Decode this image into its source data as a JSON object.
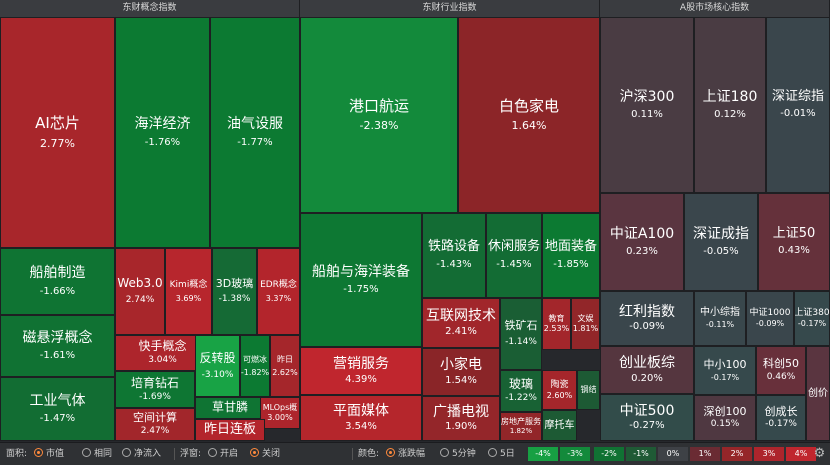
{
  "sections": [
    {
      "title": "东财概念指数"
    },
    {
      "title": "东财行业指数"
    },
    {
      "title": "A股市场核心指数"
    }
  ],
  "tiles": [
    {
      "name": "AI芯片",
      "value": "2.77%",
      "color": "#a8262b"
    },
    {
      "name": "海洋经济",
      "value": "-1.76%",
      "color": "#0c7a32"
    },
    {
      "name": "油气设服",
      "value": "-1.77%",
      "color": "#0c7a32"
    },
    {
      "name": "船舶制造",
      "value": "-1.66%",
      "color": "#0f7433"
    },
    {
      "name": "磁悬浮概念",
      "value": "-1.61%",
      "color": "#107233"
    },
    {
      "name": "工业气体",
      "value": "-1.47%",
      "color": "#126d33"
    },
    {
      "name": "Web3.0",
      "value": "2.74%",
      "color": "#a8262b"
    },
    {
      "name": "Kimi概念",
      "value": "3.69%",
      "color": "#b7262d"
    },
    {
      "name": "3D玻璃",
      "value": "-1.38%",
      "color": "#156a35"
    },
    {
      "name": "EDR概念",
      "value": "3.37%",
      "color": "#b3252c"
    },
    {
      "name": "快手概念",
      "value": "3.04%",
      "color": "#ad252c"
    },
    {
      "name": "反转股",
      "value": "-3.10%",
      "color": "#18a345"
    },
    {
      "name": "可燃冰",
      "value": "-1.82%",
      "color": "#0c7a32"
    },
    {
      "name": "昨日",
      "value": "2.62%",
      "color": "#a5262b"
    },
    {
      "name": "培育钻石",
      "value": "-1.69%",
      "color": "#0e7633"
    },
    {
      "name": "空间计算",
      "value": "2.47%",
      "color": "#a2262b"
    },
    {
      "name": "草甘膦",
      "value": "",
      "color": "#0f7433"
    },
    {
      "name": "MLOps概",
      "value": "3.00%",
      "color": "#ad252c"
    },
    {
      "name": "昨日连板",
      "value": "",
      "color": "#b3252c"
    },
    {
      "name": "港口航运",
      "value": "-2.38%",
      "color": "#138a3b"
    },
    {
      "name": "白色家电",
      "value": "1.64%",
      "color": "#8c2528"
    },
    {
      "name": "船舶与海洋装备",
      "value": "-1.75%",
      "color": "#0d7833"
    },
    {
      "name": "铁路设备",
      "value": "-1.43%",
      "color": "#136c34"
    },
    {
      "name": "休闲服务",
      "value": "-1.45%",
      "color": "#136c34"
    },
    {
      "name": "地面装备",
      "value": "-1.85%",
      "color": "#0c7a32"
    },
    {
      "name": "互联网技术",
      "value": "2.41%",
      "color": "#a1262b"
    },
    {
      "name": "铁矿石",
      "value": "-1.14%",
      "color": "#1a5e34"
    },
    {
      "name": "教育",
      "value": "2.53%",
      "color": "#a3262b"
    },
    {
      "name": "文娱",
      "value": "1.81%",
      "color": "#922629"
    },
    {
      "name": "营销服务",
      "value": "4.39%",
      "color": "#c0262e"
    },
    {
      "name": "小家电",
      "value": "1.54%",
      "color": "#8a2528"
    },
    {
      "name": "玻璃",
      "value": "-1.22%",
      "color": "#186234"
    },
    {
      "name": "陶瓷",
      "value": "2.60%",
      "color": "#a5262b"
    },
    {
      "name": "钢结",
      "value": "",
      "color": "#1d5a34"
    },
    {
      "name": "平面媒体",
      "value": "3.54%",
      "color": "#b5262c"
    },
    {
      "name": "广播电视",
      "value": "1.90%",
      "color": "#94262a"
    },
    {
      "name": "房地产服务",
      "value": "1.82%",
      "color": "#922629"
    },
    {
      "name": "摩托车",
      "value": "",
      "color": "#1d5a34"
    },
    {
      "name": "沪深300",
      "value": "0.11%",
      "color": "#4a3c43"
    },
    {
      "name": "上证180",
      "value": "0.12%",
      "color": "#4a3c43"
    },
    {
      "name": "深证综指",
      "value": "-0.01%",
      "color": "#3a464c"
    },
    {
      "name": "中证A100",
      "value": "0.23%",
      "color": "#5a3540"
    },
    {
      "name": "深证成指",
      "value": "-0.05%",
      "color": "#3a464c"
    },
    {
      "name": "上证50",
      "value": "0.43%",
      "color": "#65313b"
    },
    {
      "name": "红利指数",
      "value": "-0.09%",
      "color": "#3a464c"
    },
    {
      "name": "中小综指",
      "value": "-0.11%",
      "color": "#39474c"
    },
    {
      "name": "中证1000",
      "value": "-0.09%",
      "color": "#3a464c"
    },
    {
      "name": "上证380",
      "value": "-0.17%",
      "color": "#36494c"
    },
    {
      "name": "创业板综",
      "value": "0.20%",
      "color": "#55363f"
    },
    {
      "name": "中证500",
      "value": "-0.27%",
      "color": "#324c4a"
    },
    {
      "name": "中小100",
      "value": "-0.17%",
      "color": "#36494c"
    },
    {
      "name": "科创50",
      "value": "0.46%",
      "color": "#68303b"
    },
    {
      "name": "创价",
      "value": "",
      "color": "#5a3540"
    },
    {
      "name": "深创100",
      "value": "0.15%",
      "color": "#4f3841"
    },
    {
      "name": "创成长",
      "value": "-0.17%",
      "color": "#36494c"
    }
  ],
  "bottom": {
    "area_label": "面积:",
    "area_opts": [
      "市值",
      "相同",
      "净流入"
    ],
    "float_label": "浮窗:",
    "float_opts": [
      "开启",
      "关闭"
    ],
    "color_label": "颜色:",
    "color_opts": [
      "涨跌幅",
      "5分钟",
      "5日"
    ],
    "legend": [
      {
        "label": "-4%",
        "color": "#17a043"
      },
      {
        "label": "-3%",
        "color": "#138a3b"
      },
      {
        "label": "-2%",
        "color": "#107233"
      },
      {
        "label": "-1%",
        "color": "#1f5a35"
      },
      {
        "label": "0%",
        "color": "#3e4146"
      },
      {
        "label": "1%",
        "color": "#6a2b33"
      },
      {
        "label": "2%",
        "color": "#952629"
      },
      {
        "label": "3%",
        "color": "#ad252c"
      },
      {
        "label": "4%",
        "color": "#c0262e"
      }
    ]
  }
}
